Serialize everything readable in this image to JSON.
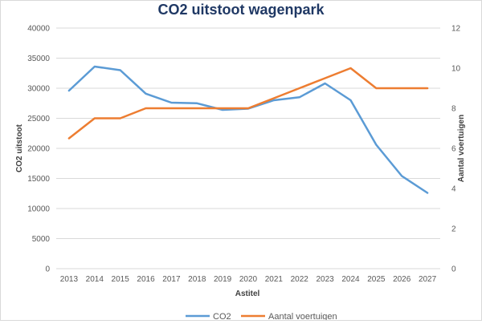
{
  "chart_data": {
    "type": "line",
    "title": "CO2 uitstoot wagenpark",
    "xlabel": "Astitel",
    "ylabel": "CO2 uitstoot",
    "y2label": "Aantal voertuigen",
    "ylim": [
      0,
      40000
    ],
    "y2lim": [
      0,
      12
    ],
    "yticks": [
      "0",
      "5000",
      "10000",
      "15000",
      "20000",
      "25000",
      "30000",
      "35000",
      "40000"
    ],
    "y2ticks": [
      "0",
      "2",
      "4",
      "6",
      "8",
      "10",
      "12"
    ],
    "grid": true,
    "legend_position": "bottom",
    "categories": [
      "2013",
      "2014",
      "2015",
      "2016",
      "2017",
      "2018",
      "2019",
      "2020",
      "2021",
      "2022",
      "2023",
      "2024",
      "2025",
      "2026",
      "2027"
    ],
    "series": [
      {
        "name": "CO2",
        "axis": "left",
        "color": "#5b9bd5",
        "values": [
          29600,
          33600,
          33000,
          29100,
          27600,
          27500,
          26400,
          26600,
          28000,
          28500,
          30800,
          28000,
          20600,
          15400,
          12600
        ]
      },
      {
        "name": "Aantal voertuigen",
        "axis": "right",
        "color": "#ed7d31",
        "values": [
          6.5,
          7.5,
          7.5,
          8,
          8,
          8,
          8,
          8,
          8.5,
          9,
          9.5,
          10,
          9,
          9,
          9
        ]
      }
    ]
  }
}
